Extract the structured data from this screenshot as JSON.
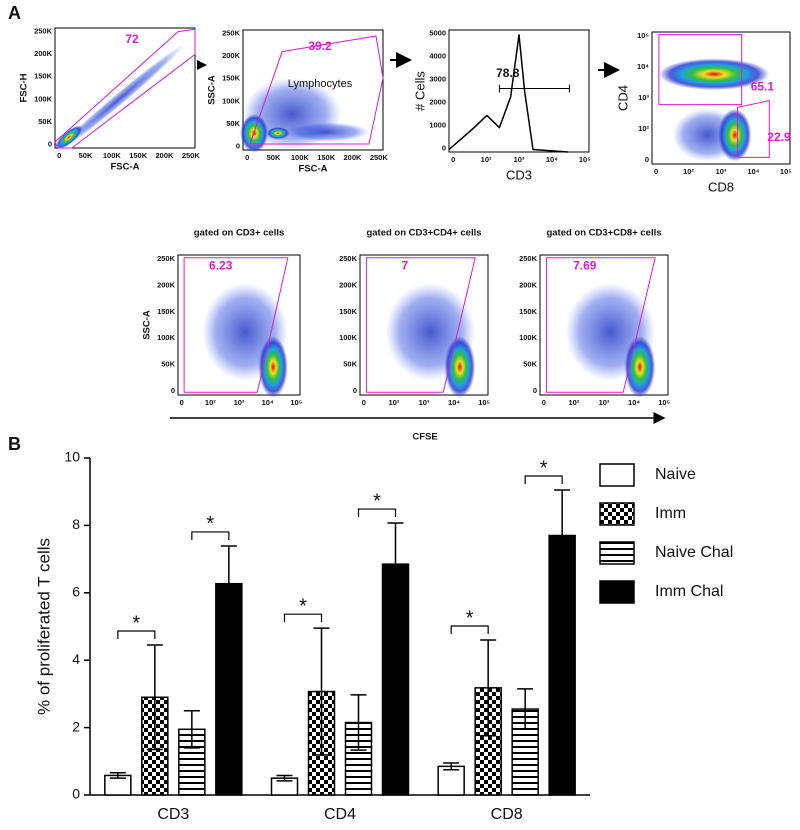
{
  "panel_labels": [
    "A",
    "B"
  ],
  "flow_plots": [
    {
      "x_label": "FSC-A",
      "y_label": "FSC-H",
      "x_ticks": [
        "0",
        "50K",
        "100K",
        "150K",
        "200K",
        "250K"
      ],
      "y_ticks": [
        "0",
        "50K",
        "100K",
        "150K",
        "200K",
        "250K"
      ],
      "gate_values": [
        72
      ]
    },
    {
      "x_label": "FSC-A",
      "y_label": "SSC-A",
      "x_ticks": [
        "0",
        "50K",
        "100K",
        "150K",
        "200K",
        "250K"
      ],
      "y_ticks": [
        "0",
        "50K",
        "100K",
        "150K",
        "200K",
        "250K"
      ],
      "gate_values": [
        39.2
      ],
      "gate_name": "Lymphocytes"
    },
    {
      "x_label": "CD3",
      "y_label": "# Cells",
      "x_ticks": [
        "0",
        "10²",
        "10³",
        "10⁴",
        "10⁵"
      ],
      "y_ticks": [
        "0",
        "1000",
        "2000",
        "3000",
        "4000",
        "5000"
      ],
      "gate_values": [
        78.8
      ]
    },
    {
      "x_label": "CD8",
      "y_label": "CD4",
      "x_ticks": [
        "0",
        "10²",
        "10³",
        "10⁴",
        "10⁵"
      ],
      "y_ticks": [
        "0",
        "10²",
        "10³",
        "10⁴",
        "10⁵"
      ],
      "gate_values": [
        65.1,
        22.9
      ]
    }
  ],
  "proliferation": {
    "y_label": "SSC-A",
    "x_axis_label": "CFSE",
    "x_ticks": [
      "0",
      "10²",
      "10³",
      "10⁴",
      "10⁵"
    ],
    "y_ticks": [
      "0",
      "50K",
      "100K",
      "150K",
      "200K",
      "250K"
    ],
    "plots": [
      {
        "title": "gated on CD3+ cells",
        "gate_value": 6.23
      },
      {
        "title": "gated on CD3+CD4+ cells",
        "gate_value": 7
      },
      {
        "title": "gated on CD3+CD8+ cells",
        "gate_value": 7.69
      }
    ]
  },
  "chart_data": {
    "type": "bar",
    "y_label": "% of proliferated T cells",
    "categories": [
      "CD3",
      "CD4",
      "CD8"
    ],
    "series": [
      {
        "name": "Naive",
        "color": "#ffffff",
        "pattern": "solid",
        "values": [
          0.58,
          0.5,
          0.85
        ],
        "errors": [
          0.08,
          0.08,
          0.1
        ]
      },
      {
        "name": "Imm",
        "color": "#000000",
        "pattern": "checker",
        "values": [
          2.9,
          3.07,
          3.18
        ],
        "errors": [
          1.55,
          1.88,
          1.42
        ]
      },
      {
        "name": "Naive Chal",
        "color": "#000000",
        "pattern": "hstripe",
        "values": [
          1.95,
          2.15,
          2.55
        ],
        "errors": [
          0.55,
          0.82,
          0.6
        ]
      },
      {
        "name": "Imm Chal",
        "color": "#000000",
        "pattern": "solid",
        "values": [
          6.27,
          6.85,
          7.7
        ],
        "errors": [
          1.12,
          1.22,
          1.35
        ]
      }
    ],
    "annotations": [
      "*",
      "*",
      "*",
      "*",
      "*",
      "*"
    ],
    "ylim": [
      0,
      10
    ],
    "yticks": [
      0,
      2,
      4,
      6,
      8,
      10
    ],
    "legend": "right"
  }
}
